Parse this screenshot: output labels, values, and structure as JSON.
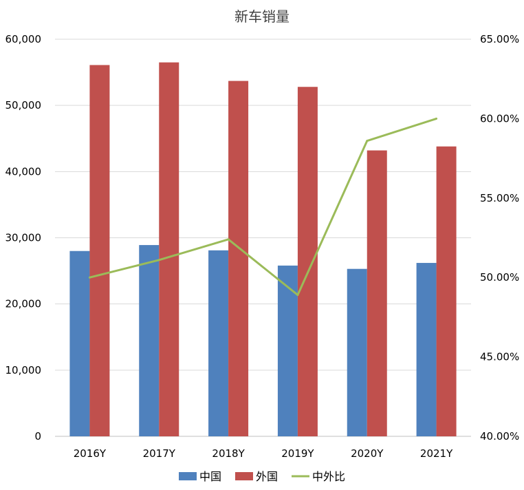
{
  "chart_data": {
    "type": "bar",
    "title": "新车销量",
    "categories": [
      "2016Y",
      "2017Y",
      "2018Y",
      "2019Y",
      "2020Y",
      "2021Y"
    ],
    "series": [
      {
        "name": "中国",
        "type": "bar",
        "axis": "left",
        "color": "#4F81BD",
        "values": [
          28000,
          28900,
          28100,
          25800,
          25300,
          26200
        ]
      },
      {
        "name": "外国",
        "type": "bar",
        "axis": "left",
        "color": "#C0504D",
        "values": [
          56100,
          56500,
          53700,
          52800,
          43200,
          43800
        ]
      },
      {
        "name": "中外比",
        "type": "line",
        "axis": "right",
        "color": "#9BBB59",
        "values": [
          0.5,
          0.511,
          0.524,
          0.489,
          0.586,
          0.6
        ]
      }
    ],
    "y_left": {
      "min": 0,
      "max": 60000,
      "ticks": [
        0,
        10000,
        20000,
        30000,
        40000,
        50000,
        60000
      ],
      "tick_labels": [
        "0",
        "10,000",
        "20,000",
        "30,000",
        "40,000",
        "50,000",
        "60,000"
      ]
    },
    "y_right": {
      "min": 0.4,
      "max": 0.65,
      "ticks": [
        0.4,
        0.45,
        0.5,
        0.55,
        0.6,
        0.65
      ],
      "tick_labels": [
        "40.00%",
        "45.00%",
        "50.00%",
        "55.00%",
        "60.00%",
        "65.00%"
      ]
    },
    "grid": true,
    "legend_position": "bottom"
  }
}
